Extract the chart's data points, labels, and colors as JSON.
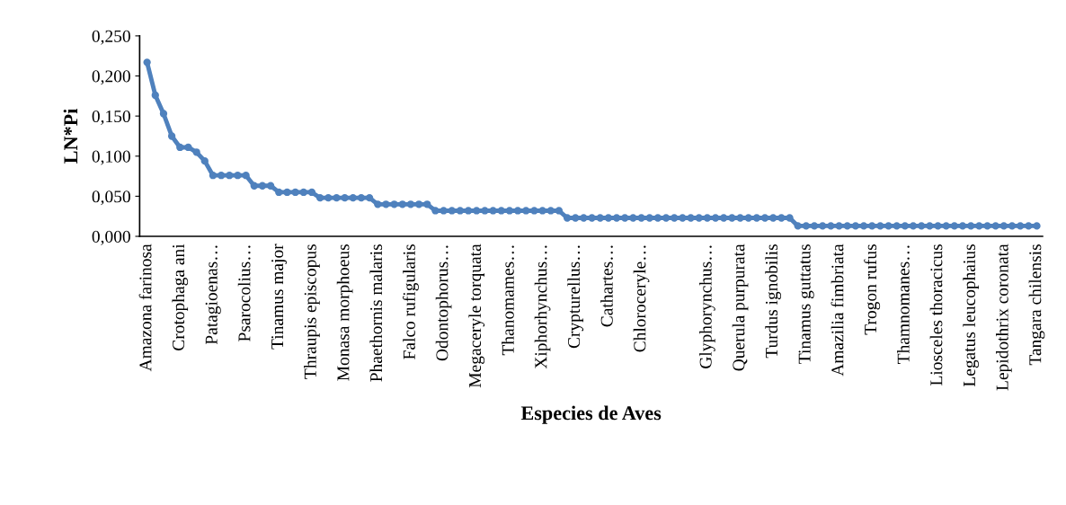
{
  "chart_data": {
    "type": "line",
    "xlabel": "Especies de Aves",
    "ylabel": "LN*Pi",
    "categories": [
      "Amazona farinosa",
      null,
      null,
      null,
      "Crotophaga ani",
      null,
      null,
      null,
      "Patagioenas…",
      null,
      null,
      null,
      "Psarocolius…",
      null,
      null,
      null,
      "Tinamus major",
      null,
      null,
      null,
      "Thraupis episcopus",
      null,
      null,
      null,
      "Monasa morphoeus",
      null,
      null,
      null,
      "Phaethornis malaris",
      null,
      null,
      null,
      "Falco rufigularis",
      null,
      null,
      null,
      "Odontophorus…",
      null,
      null,
      null,
      "Megaceryle torquata",
      null,
      null,
      null,
      "Thanomames…",
      null,
      null,
      null,
      "Xiphorhynchus…",
      null,
      null,
      null,
      "Crypturellus…",
      null,
      null,
      null,
      "Cathartes…",
      null,
      null,
      null,
      "Chloroceryle…",
      null,
      null,
      null,
      null,
      null,
      null,
      null,
      "Glyphorynchus…",
      null,
      null,
      null,
      "Querula purpurata",
      null,
      null,
      null,
      "Turdus ignobilis",
      null,
      null,
      null,
      "Tinamus guttatus",
      null,
      null,
      null,
      "Amazilia fimbriata",
      null,
      null,
      null,
      "Trogon rufus",
      null,
      null,
      null,
      "Thamnomanes…",
      null,
      null,
      null,
      "Liosceles thoracicus",
      null,
      null,
      null,
      "Legatus leucophaius",
      null,
      null,
      null,
      "Lepidothrix coronata",
      null,
      null,
      null,
      "Tangara chilensis"
    ],
    "values": [
      0.217,
      0.176,
      0.153,
      0.125,
      0.111,
      0.111,
      0.105,
      0.094,
      0.076,
      0.076,
      0.076,
      0.076,
      0.076,
      0.063,
      0.063,
      0.063,
      0.055,
      0.055,
      0.055,
      0.055,
      0.055,
      0.048,
      0.048,
      0.048,
      0.048,
      0.048,
      0.048,
      0.048,
      0.04,
      0.04,
      0.04,
      0.04,
      0.04,
      0.04,
      0.04,
      0.032,
      0.032,
      0.032,
      0.032,
      0.032,
      0.032,
      0.032,
      0.032,
      0.032,
      0.032,
      0.032,
      0.032,
      0.032,
      0.032,
      0.032,
      0.032,
      0.023,
      0.023,
      0.023,
      0.023,
      0.023,
      0.023,
      0.023,
      0.023,
      0.023,
      0.023,
      0.023,
      0.023,
      0.023,
      0.023,
      0.023,
      0.023,
      0.023,
      0.023,
      0.023,
      0.023,
      0.023,
      0.023,
      0.023,
      0.023,
      0.023,
      0.023,
      0.023,
      0.023,
      0.013,
      0.013,
      0.013,
      0.013,
      0.013,
      0.013,
      0.013,
      0.013,
      0.013,
      0.013,
      0.013,
      0.013,
      0.013,
      0.013,
      0.013,
      0.013,
      0.013,
      0.013,
      0.013,
      0.013,
      0.013,
      0.013,
      0.013,
      0.013,
      0.013,
      0.013,
      0.013,
      0.013,
      0.013,
      0.013
    ],
    "color": "#4f81bd",
    "marker": "circle",
    "line_style": "solid",
    "grid": false,
    "legend": false,
    "ylim": [
      0,
      0.25
    ],
    "yticks": [
      {
        "value": 0,
        "label": "0,000"
      },
      {
        "value": 0.05,
        "label": "0,050"
      },
      {
        "value": 0.1,
        "label": "0,100"
      },
      {
        "value": 0.15,
        "label": "0,150"
      },
      {
        "value": 0.2,
        "label": "0,200"
      },
      {
        "value": 0.25,
        "label": "0,250"
      }
    ]
  }
}
